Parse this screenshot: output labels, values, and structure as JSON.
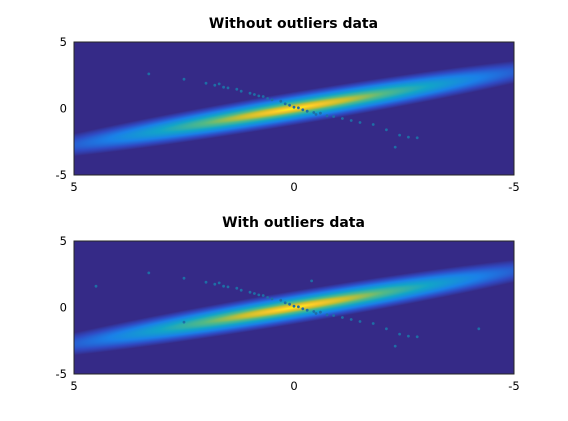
{
  "chart_data": [
    {
      "type": "heatmap",
      "title": "Without outliers data",
      "xlabel": "",
      "ylabel": "",
      "x_direction": "reversed",
      "xlim": [
        5,
        -5
      ],
      "ylim": [
        -5,
        5
      ],
      "xticks": [
        "5",
        "0",
        "-5"
      ],
      "yticks": [
        "5",
        "0",
        "-5"
      ],
      "grid": false,
      "colormap": "parula",
      "density_ridge": {
        "slope": -0.55,
        "intercept": 0.0,
        "along_spread": 2.0,
        "across_spread": 0.35
      },
      "points": [
        {
          "x": 3.3,
          "y": 2.6
        },
        {
          "x": 2.5,
          "y": 2.2
        },
        {
          "x": 2.0,
          "y": 1.9
        },
        {
          "x": 1.8,
          "y": 1.75
        },
        {
          "x": 1.6,
          "y": 1.6
        },
        {
          "x": 1.5,
          "y": 1.55
        },
        {
          "x": 1.3,
          "y": 1.45
        },
        {
          "x": 1.2,
          "y": 1.3
        },
        {
          "x": 1.0,
          "y": 1.15
        },
        {
          "x": 0.9,
          "y": 1.05
        },
        {
          "x": 0.8,
          "y": 0.95
        },
        {
          "x": 0.7,
          "y": 0.9
        },
        {
          "x": 0.6,
          "y": 0.75
        },
        {
          "x": 0.5,
          "y": 0.65
        },
        {
          "x": 0.3,
          "y": 0.55
        },
        {
          "x": 0.2,
          "y": 0.35
        },
        {
          "x": 0.1,
          "y": 0.25
        },
        {
          "x": 0.0,
          "y": 0.1
        },
        {
          "x": -0.1,
          "y": 0.05
        },
        {
          "x": -0.2,
          "y": -0.1
        },
        {
          "x": -0.3,
          "y": -0.2
        },
        {
          "x": -0.45,
          "y": -0.3
        },
        {
          "x": -0.6,
          "y": -0.35
        },
        {
          "x": -0.75,
          "y": -0.55
        },
        {
          "x": -0.9,
          "y": -0.6
        },
        {
          "x": -1.1,
          "y": -0.75
        },
        {
          "x": -1.3,
          "y": -0.9
        },
        {
          "x": -1.5,
          "y": -1.05
        },
        {
          "x": -1.8,
          "y": -1.2
        },
        {
          "x": -2.1,
          "y": -1.6
        },
        {
          "x": -2.4,
          "y": -2.0
        },
        {
          "x": -2.6,
          "y": -2.15
        },
        {
          "x": -2.8,
          "y": -2.2
        },
        {
          "x": -2.3,
          "y": -2.9
        },
        {
          "x": 1.7,
          "y": 1.85
        },
        {
          "x": -0.5,
          "y": -0.45
        }
      ]
    },
    {
      "type": "heatmap",
      "title": "With outliers data",
      "xlabel": "",
      "ylabel": "",
      "x_direction": "reversed",
      "xlim": [
        5,
        -5
      ],
      "ylim": [
        -5,
        5
      ],
      "xticks": [
        "5",
        "0",
        "-5"
      ],
      "yticks": [
        "5",
        "0",
        "-5"
      ],
      "grid": false,
      "colormap": "parula",
      "density_ridge": {
        "slope": -0.55,
        "intercept": 0.0,
        "along_spread": 2.0,
        "across_spread": 0.35
      },
      "points": [
        {
          "x": 3.3,
          "y": 2.6
        },
        {
          "x": 2.5,
          "y": 2.2
        },
        {
          "x": 2.0,
          "y": 1.9
        },
        {
          "x": 1.8,
          "y": 1.75
        },
        {
          "x": 1.6,
          "y": 1.6
        },
        {
          "x": 1.5,
          "y": 1.55
        },
        {
          "x": 1.3,
          "y": 1.45
        },
        {
          "x": 1.2,
          "y": 1.3
        },
        {
          "x": 1.0,
          "y": 1.15
        },
        {
          "x": 0.9,
          "y": 1.05
        },
        {
          "x": 0.8,
          "y": 0.95
        },
        {
          "x": 0.7,
          "y": 0.9
        },
        {
          "x": 0.6,
          "y": 0.75
        },
        {
          "x": 0.5,
          "y": 0.65
        },
        {
          "x": 0.3,
          "y": 0.55
        },
        {
          "x": 0.2,
          "y": 0.35
        },
        {
          "x": 0.1,
          "y": 0.25
        },
        {
          "x": 0.0,
          "y": 0.1
        },
        {
          "x": -0.1,
          "y": 0.05
        },
        {
          "x": -0.2,
          "y": -0.1
        },
        {
          "x": -0.3,
          "y": -0.2
        },
        {
          "x": -0.45,
          "y": -0.3
        },
        {
          "x": -0.6,
          "y": -0.35
        },
        {
          "x": -0.75,
          "y": -0.55
        },
        {
          "x": -0.9,
          "y": -0.6
        },
        {
          "x": -1.1,
          "y": -0.75
        },
        {
          "x": -1.3,
          "y": -0.9
        },
        {
          "x": -1.5,
          "y": -1.05
        },
        {
          "x": -1.8,
          "y": -1.2
        },
        {
          "x": -2.1,
          "y": -1.6
        },
        {
          "x": -2.4,
          "y": -2.0
        },
        {
          "x": -2.6,
          "y": -2.15
        },
        {
          "x": -2.8,
          "y": -2.2
        },
        {
          "x": -2.3,
          "y": -2.9
        },
        {
          "x": 1.7,
          "y": 1.85
        },
        {
          "x": -0.5,
          "y": -0.45
        },
        {
          "x": 4.5,
          "y": 1.6
        },
        {
          "x": 2.5,
          "y": -1.1
        },
        {
          "x": -0.4,
          "y": 2.0
        },
        {
          "x": -4.2,
          "y": -1.6
        }
      ]
    }
  ]
}
